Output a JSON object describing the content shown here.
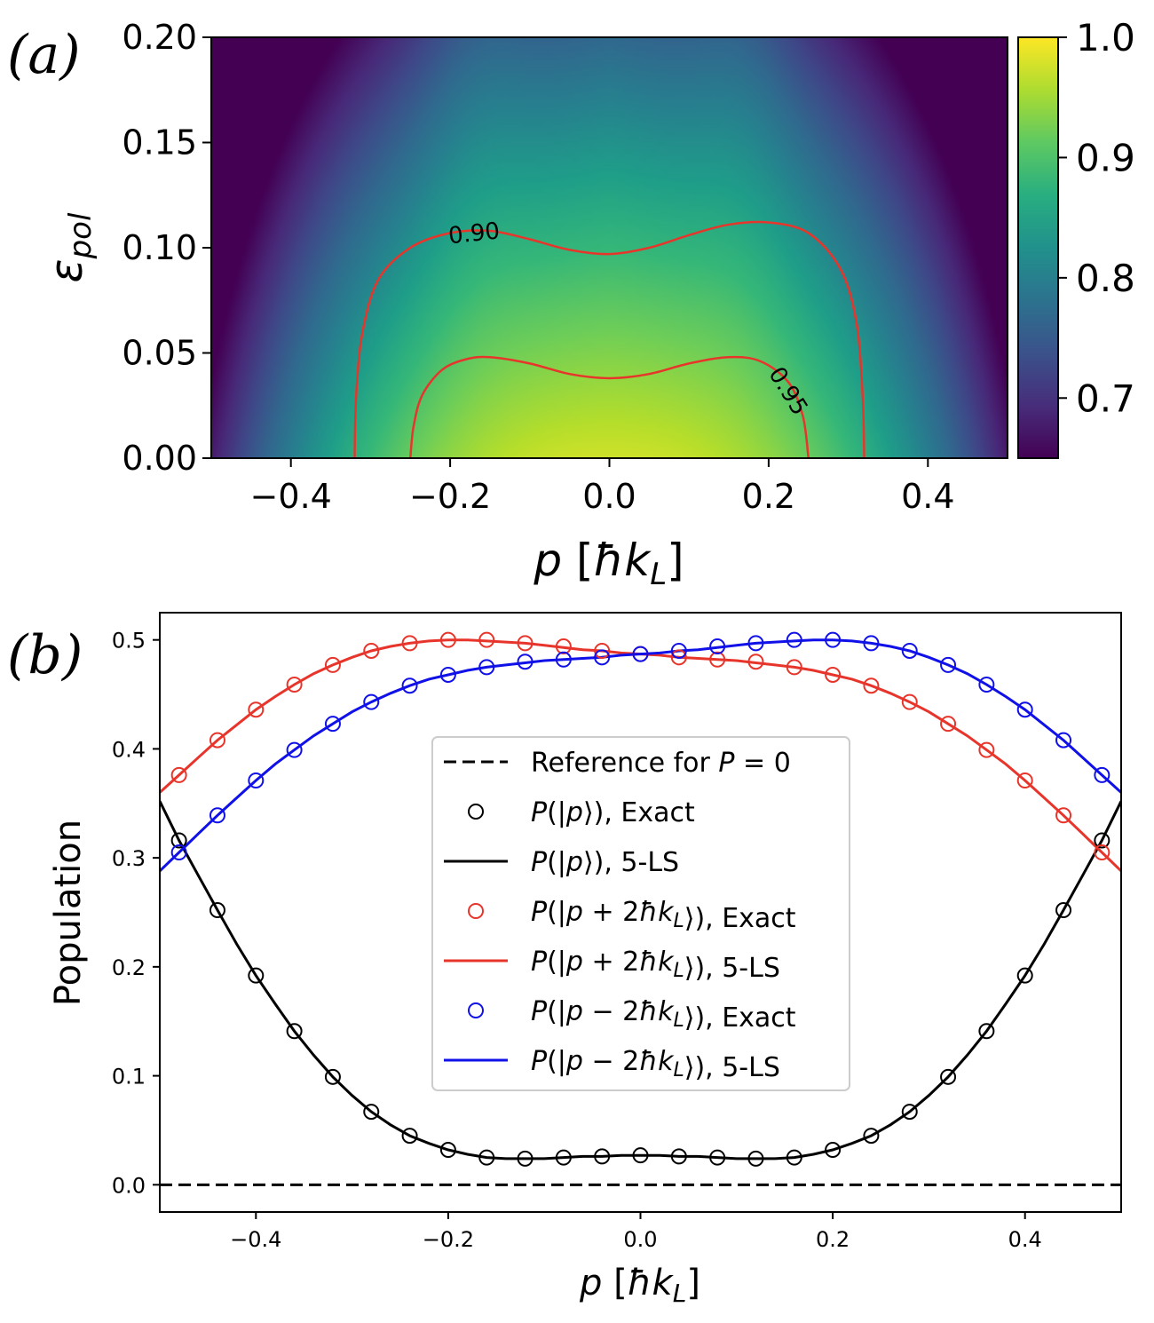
{
  "chart_data": [
    {
      "panel_label": "(a)",
      "type": "heatmap",
      "xlabel": "p [ħk_L]",
      "ylabel": "ε_pol",
      "xlim": [
        -0.5,
        0.5
      ],
      "ylim": [
        0.0,
        0.2
      ],
      "x_ticks": [
        -0.4,
        -0.2,
        0.0,
        0.2,
        0.4
      ],
      "x_tick_labels": [
        "−0.4",
        "−0.2",
        "0.0",
        "0.2",
        "0.4"
      ],
      "y_ticks": [
        0.0,
        0.05,
        0.1,
        0.15,
        0.2
      ],
      "y_tick_labels": [
        "0.00",
        "0.05",
        "0.10",
        "0.15",
        "0.20"
      ],
      "colormap": "viridis",
      "clim": [
        0.65,
        1.0
      ],
      "colorbar_ticks": [
        0.7,
        0.8,
        0.9,
        1.0
      ],
      "colorbar_tick_labels": [
        "0.7",
        "0.8",
        "0.9",
        "1.0"
      ],
      "contour_color": "#e8352b",
      "contours": [
        {
          "level": 0.9,
          "label": "0.90",
          "points": [
            [
              -0.32,
              0.0
            ],
            [
              -0.318,
              0.03
            ],
            [
              -0.31,
              0.06
            ],
            [
              -0.29,
              0.085
            ],
            [
              -0.25,
              0.1
            ],
            [
              -0.2,
              0.107
            ],
            [
              -0.15,
              0.108
            ],
            [
              -0.1,
              0.104
            ],
            [
              -0.05,
              0.099
            ],
            [
              0.0,
              0.097
            ],
            [
              0.05,
              0.1
            ],
            [
              0.1,
              0.106
            ],
            [
              0.15,
              0.111
            ],
            [
              0.2,
              0.112
            ],
            [
              0.25,
              0.107
            ],
            [
              0.29,
              0.09
            ],
            [
              0.31,
              0.065
            ],
            [
              0.318,
              0.03
            ],
            [
              0.32,
              0.0
            ]
          ]
        },
        {
          "level": 0.95,
          "label": "0.95",
          "points": [
            [
              -0.25,
              0.0
            ],
            [
              -0.246,
              0.015
            ],
            [
              -0.235,
              0.03
            ],
            [
              -0.21,
              0.042
            ],
            [
              -0.18,
              0.047
            ],
            [
              -0.15,
              0.048
            ],
            [
              -0.1,
              0.045
            ],
            [
              -0.05,
              0.04
            ],
            [
              0.0,
              0.038
            ],
            [
              0.05,
              0.04
            ],
            [
              0.1,
              0.045
            ],
            [
              0.15,
              0.048
            ],
            [
              0.19,
              0.046
            ],
            [
              0.225,
              0.036
            ],
            [
              0.243,
              0.02
            ],
            [
              0.25,
              0.0
            ]
          ]
        }
      ]
    },
    {
      "panel_label": "(b)",
      "type": "line",
      "xlabel": "p [ħk_L]",
      "ylabel": "Population",
      "xlim": [
        -0.5,
        0.5
      ],
      "ylim": [
        -0.025,
        0.525
      ],
      "x_ticks": [
        -0.4,
        -0.2,
        0.0,
        0.2,
        0.4
      ],
      "x_tick_labels": [
        "−0.4",
        "−0.2",
        "0.0",
        "0.2",
        "0.4"
      ],
      "y_ticks": [
        0.0,
        0.1,
        0.2,
        0.3,
        0.4,
        0.5
      ],
      "y_tick_labels": [
        "0.0",
        "0.1",
        "0.2",
        "0.3",
        "0.4",
        "0.5"
      ],
      "legend_position": "center",
      "legend": [
        {
          "marker": "dash",
          "color": "#000000",
          "text": "Reference for P = 0"
        },
        {
          "marker": "circle",
          "color": "#000000",
          "text": "P(|p⟩), Exact"
        },
        {
          "marker": "line",
          "color": "#000000",
          "text": "P(|p⟩), 5-LS"
        },
        {
          "marker": "circle",
          "color": "#e8352b",
          "text": "P(|p + 2ħk_L⟩), Exact"
        },
        {
          "marker": "line",
          "color": "#e8352b",
          "text": "P(|p + 2ħk_L⟩), 5-LS"
        },
        {
          "marker": "circle",
          "color": "#1010e8",
          "text": "P(|p − 2ħk_L⟩), Exact"
        },
        {
          "marker": "line",
          "color": "#1010e8",
          "text": "P(|p − 2ħk_L⟩), 5-LS"
        }
      ],
      "reference_line": {
        "y": 0.0,
        "style": "dashed",
        "color": "#000000"
      },
      "series": [
        {
          "name": "P(|p⟩)",
          "color": "#000000",
          "exact_x": [
            -0.48,
            -0.44,
            -0.4,
            -0.36,
            -0.32,
            -0.28,
            -0.24,
            -0.2,
            -0.16,
            -0.12,
            -0.08,
            -0.04,
            0.0,
            0.04,
            0.08,
            0.12,
            0.16,
            0.2,
            0.24,
            0.28,
            0.32,
            0.36,
            0.4,
            0.44,
            0.48
          ],
          "exact_y": [
            0.316,
            0.252,
            0.192,
            0.141,
            0.099,
            0.067,
            0.045,
            0.032,
            0.025,
            0.024,
            0.025,
            0.026,
            0.027,
            0.026,
            0.025,
            0.024,
            0.025,
            0.032,
            0.045,
            0.067,
            0.099,
            0.141,
            0.192,
            0.252,
            0.316
          ],
          "fit_x": [
            -0.5,
            -0.48,
            -0.46,
            -0.44,
            -0.42,
            -0.4,
            -0.38,
            -0.36,
            -0.34,
            -0.32,
            -0.3,
            -0.28,
            -0.26,
            -0.24,
            -0.22,
            -0.2,
            -0.18,
            -0.16,
            -0.14,
            -0.12,
            -0.1,
            -0.08,
            -0.06,
            -0.04,
            -0.02,
            0.0,
            0.02,
            0.04,
            0.06,
            0.08,
            0.1,
            0.12,
            0.14,
            0.16,
            0.18,
            0.2,
            0.22,
            0.24,
            0.26,
            0.28,
            0.3,
            0.32,
            0.34,
            0.36,
            0.38,
            0.4,
            0.42,
            0.44,
            0.46,
            0.48,
            0.5
          ],
          "fit_y": [
            0.352,
            0.316,
            0.284,
            0.252,
            0.221,
            0.192,
            0.166,
            0.141,
            0.119,
            0.099,
            0.082,
            0.067,
            0.055,
            0.045,
            0.038,
            0.032,
            0.028,
            0.025,
            0.024,
            0.024,
            0.024,
            0.025,
            0.026,
            0.026,
            0.027,
            0.027,
            0.027,
            0.026,
            0.026,
            0.025,
            0.024,
            0.024,
            0.024,
            0.025,
            0.028,
            0.032,
            0.038,
            0.045,
            0.055,
            0.067,
            0.082,
            0.099,
            0.119,
            0.141,
            0.166,
            0.192,
            0.221,
            0.252,
            0.284,
            0.316,
            0.352
          ]
        },
        {
          "name": "P(|p + 2ħk_L⟩)",
          "color": "#e8352b",
          "exact_x": [
            -0.48,
            -0.44,
            -0.4,
            -0.36,
            -0.32,
            -0.28,
            -0.24,
            -0.2,
            -0.16,
            -0.12,
            -0.08,
            -0.04,
            0.0,
            0.04,
            0.08,
            0.12,
            0.16,
            0.2,
            0.24,
            0.28,
            0.32,
            0.36,
            0.4,
            0.44,
            0.48
          ],
          "exact_y": [
            0.376,
            0.408,
            0.436,
            0.459,
            0.477,
            0.49,
            0.497,
            0.5,
            0.5,
            0.497,
            0.494,
            0.49,
            0.487,
            0.484,
            0.482,
            0.48,
            0.475,
            0.468,
            0.458,
            0.443,
            0.423,
            0.399,
            0.371,
            0.339,
            0.305
          ],
          "fit_x": [
            -0.5,
            -0.48,
            -0.46,
            -0.44,
            -0.42,
            -0.4,
            -0.38,
            -0.36,
            -0.34,
            -0.32,
            -0.3,
            -0.28,
            -0.26,
            -0.24,
            -0.22,
            -0.2,
            -0.18,
            -0.16,
            -0.14,
            -0.12,
            -0.1,
            -0.08,
            -0.06,
            -0.04,
            -0.02,
            0.0,
            0.02,
            0.04,
            0.06,
            0.08,
            0.1,
            0.12,
            0.14,
            0.16,
            0.18,
            0.2,
            0.22,
            0.24,
            0.26,
            0.28,
            0.3,
            0.32,
            0.34,
            0.36,
            0.38,
            0.4,
            0.42,
            0.44,
            0.46,
            0.48,
            0.5
          ],
          "fit_y": [
            0.36,
            0.376,
            0.392,
            0.408,
            0.422,
            0.436,
            0.448,
            0.459,
            0.469,
            0.477,
            0.484,
            0.49,
            0.494,
            0.497,
            0.499,
            0.5,
            0.5,
            0.499,
            0.498,
            0.497,
            0.495,
            0.493,
            0.491,
            0.49,
            0.488,
            0.487,
            0.486,
            0.484,
            0.483,
            0.482,
            0.481,
            0.479,
            0.477,
            0.475,
            0.472,
            0.468,
            0.464,
            0.458,
            0.451,
            0.443,
            0.434,
            0.423,
            0.412,
            0.399,
            0.386,
            0.371,
            0.355,
            0.339,
            0.322,
            0.305,
            0.288
          ]
        },
        {
          "name": "P(|p − 2ħk_L⟩)",
          "color": "#1010e8",
          "exact_x": [
            -0.48,
            -0.44,
            -0.4,
            -0.36,
            -0.32,
            -0.28,
            -0.24,
            -0.2,
            -0.16,
            -0.12,
            -0.08,
            -0.04,
            0.0,
            0.04,
            0.08,
            0.12,
            0.16,
            0.2,
            0.24,
            0.28,
            0.32,
            0.36,
            0.4,
            0.44,
            0.48
          ],
          "exact_y": [
            0.305,
            0.339,
            0.371,
            0.399,
            0.423,
            0.443,
            0.458,
            0.468,
            0.475,
            0.48,
            0.482,
            0.484,
            0.487,
            0.49,
            0.494,
            0.497,
            0.5,
            0.5,
            0.497,
            0.49,
            0.477,
            0.459,
            0.436,
            0.408,
            0.376
          ],
          "fit_x": [
            -0.5,
            -0.48,
            -0.46,
            -0.44,
            -0.42,
            -0.4,
            -0.38,
            -0.36,
            -0.34,
            -0.32,
            -0.3,
            -0.28,
            -0.26,
            -0.24,
            -0.22,
            -0.2,
            -0.18,
            -0.16,
            -0.14,
            -0.12,
            -0.1,
            -0.08,
            -0.06,
            -0.04,
            -0.02,
            0.0,
            0.02,
            0.04,
            0.06,
            0.08,
            0.1,
            0.12,
            0.14,
            0.16,
            0.18,
            0.2,
            0.22,
            0.24,
            0.26,
            0.28,
            0.3,
            0.32,
            0.34,
            0.36,
            0.38,
            0.4,
            0.42,
            0.44,
            0.46,
            0.48,
            0.5
          ],
          "fit_y": [
            0.288,
            0.305,
            0.322,
            0.339,
            0.355,
            0.371,
            0.386,
            0.399,
            0.412,
            0.423,
            0.434,
            0.443,
            0.451,
            0.458,
            0.464,
            0.468,
            0.472,
            0.475,
            0.477,
            0.479,
            0.481,
            0.482,
            0.483,
            0.484,
            0.486,
            0.487,
            0.488,
            0.49,
            0.491,
            0.493,
            0.495,
            0.497,
            0.498,
            0.499,
            0.5,
            0.5,
            0.499,
            0.497,
            0.494,
            0.49,
            0.484,
            0.477,
            0.469,
            0.459,
            0.448,
            0.436,
            0.422,
            0.408,
            0.392,
            0.376,
            0.36
          ]
        }
      ]
    }
  ]
}
